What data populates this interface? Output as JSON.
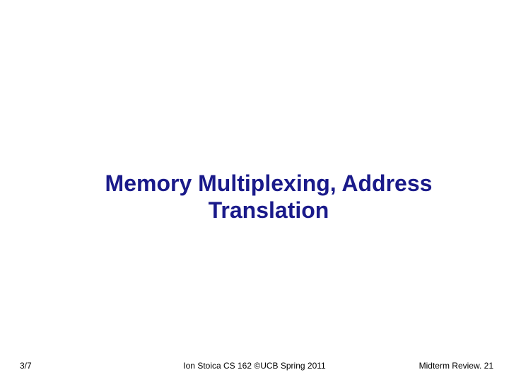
{
  "slide": {
    "title": "Memory Multiplexing, Address Translation",
    "title_color": "#1a1a8a",
    "title_fontsize": 32,
    "background_color": "#ffffff"
  },
  "footer": {
    "left": "3/7",
    "center": "Ion Stoica CS 162 ©UCB Spring 2011",
    "right": "Midterm Review. 21",
    "text_color": "#000000",
    "fontsize": 12
  }
}
